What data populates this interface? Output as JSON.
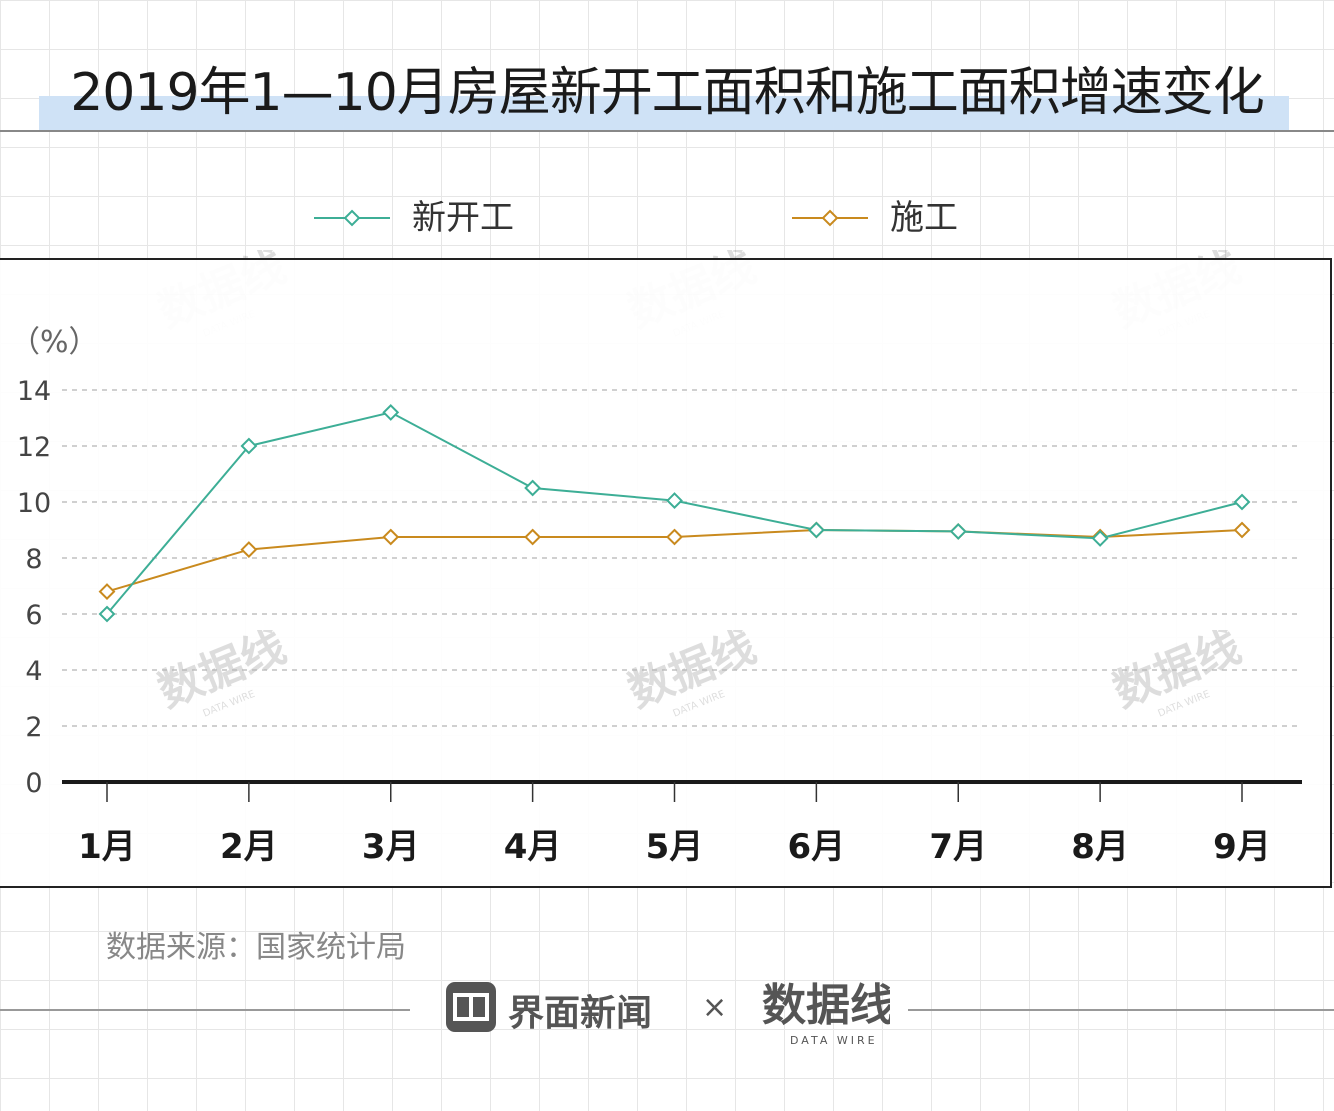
{
  "title": "2019年1—10月房屋新开工面积和施工面积增速变化",
  "source": "数据来源：国家统计局",
  "branding": {
    "left_name": "界面新闻",
    "separator": "×",
    "right_logo_text": "数据线",
    "right_logo_sub": "DATA WIRE"
  },
  "colors": {
    "new_construction": "#3dae96",
    "under_construction": "#c98a1e",
    "title_band": "#cfe2f6"
  },
  "chart_data": {
    "type": "line",
    "unit_label": "（%）",
    "categories": [
      "1月",
      "2月",
      "3月",
      "4月",
      "5月",
      "6月",
      "7月",
      "8月",
      "9月"
    ],
    "ylim": [
      0,
      14
    ],
    "yticks": [
      0,
      2,
      4,
      6,
      8,
      10,
      12,
      14
    ],
    "grid": true,
    "legend_position": "top",
    "series": [
      {
        "name": "新开工",
        "color": "#3dae96",
        "marker": "diamond",
        "values": [
          6.0,
          12.0,
          13.2,
          10.5,
          10.05,
          9.0,
          8.95,
          8.7,
          10.0
        ]
      },
      {
        "name": "施工",
        "color": "#c98a1e",
        "marker": "diamond",
        "values": [
          6.8,
          8.3,
          8.75,
          8.75,
          8.75,
          9.0,
          8.95,
          8.75,
          9.0
        ]
      }
    ]
  }
}
